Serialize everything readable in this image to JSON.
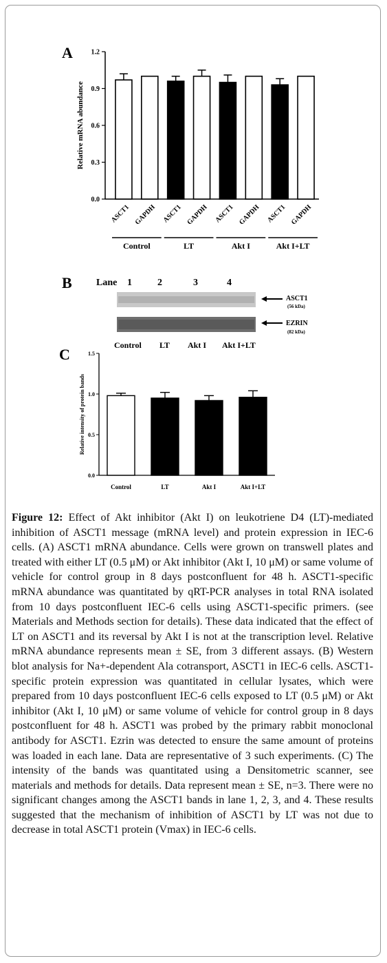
{
  "panel_letters": {
    "a": "A",
    "b": "B",
    "c": "C"
  },
  "chart_data": [
    {
      "type": "bar",
      "panel": "A",
      "ylabel": "Relative mRNA abundance",
      "ylim": [
        0,
        1.2
      ],
      "yticks": [
        "0.0",
        "0.3",
        "0.6",
        "0.9",
        "1.2"
      ],
      "categories": [
        "ASCT1",
        "GAPDH",
        "ASCT1",
        "GAPDH",
        "ASCT1",
        "GAPDH",
        "ASCT1",
        "GAPDH"
      ],
      "groups": [
        "Control",
        "LT",
        "Akt I",
        "Akt I+LT"
      ],
      "values": [
        0.97,
        1.0,
        0.96,
        1.0,
        0.95,
        1.0,
        0.93,
        1.0
      ],
      "errors": [
        0.05,
        0.0,
        0.04,
        0.05,
        0.06,
        0.0,
        0.05,
        0.0
      ],
      "fills": [
        "#ffffff",
        "#ffffff",
        "#000000",
        "#ffffff",
        "#000000",
        "#ffffff",
        "#000000",
        "#ffffff"
      ]
    },
    {
      "type": "bar",
      "panel": "C",
      "ylabel": "Relative intensity of protein bands",
      "ylim": [
        0,
        1.5
      ],
      "yticks": [
        "0.0",
        "0.5",
        "1.0",
        "1.5"
      ],
      "categories": [
        "Control",
        "LT",
        "Akt I",
        "Akt I+LT"
      ],
      "values": [
        0.98,
        0.95,
        0.92,
        0.96
      ],
      "errors": [
        0.03,
        0.07,
        0.06,
        0.08
      ],
      "fills": [
        "#ffffff",
        "#000000",
        "#000000",
        "#000000"
      ]
    }
  ],
  "blot": {
    "lane_header": "Lane",
    "lanes": [
      "1",
      "2",
      "3",
      "4"
    ],
    "bands": [
      {
        "name": "ASCT1",
        "kda": "(56 kDa)"
      },
      {
        "name": "EZRIN",
        "kda": "(82 kDa)"
      }
    ],
    "conditions": [
      "Control",
      "LT",
      "Akt I",
      "Akt I+LT"
    ]
  },
  "caption": {
    "label": "Figure 12:",
    "text": "Effect of Akt inhibitor (Akt I) on leukotriene D4 (LT)-mediated inhibition of ASCT1 message (mRNA level) and protein expression in IEC-6 cells. (A) ASCT1 mRNA abundance. Cells were grown on transwell plates and treated with either LT (0.5 μM) or Akt inhibitor (Akt I, 10 μM) or same volume of vehicle for control group in 8 days postconfluent for 48 h. ASCT1-specific mRNA abundance was quantitated by qRT-PCR analyses in total RNA isolated from 10 days postconfluent IEC-6 cells using ASCT1-specific primers. (see Materials and Methods section for details). These data indicated that the effect of LT on ASCT1 and its reversal by Akt I is not at the transcription level. Relative mRNA abundance represents mean ± SE, from 3 different assays. (B) Western blot analysis for Na+-dependent Ala cotransport, ASCT1 in IEC-6 cells. ASCT1-specific protein expression was quantitated in cellular lysates, which were prepared from 10 days postconfluent IEC-6 cells exposed to LT (0.5 μM) or Akt inhibitor (Akt I, 10 μM) or same volume of vehicle for control group in 8 days postconfluent for 48 h. ASCT1 was probed by the primary rabbit monoclonal antibody for ASCT1. Ezrin was detected to ensure the same amount of proteins was loaded in each lane. Data are representative of 3 such experiments. (C) The intensity of the bands was quantitated using a Densitometric scanner, see materials and methods for details. Data represent mean ± SE, n=3. There were no significant changes among the ASCT1 bands in lane 1, 2, 3, and 4. These results suggested that the mechanism of inhibition of ASCT1 by LT was not due to decrease in total ASCT1 protein (Vmax) in IEC-6 cells."
  },
  "colors": {
    "border": "#9a9a9a",
    "blot_band": "#5a5a5a",
    "blot_bg": "#c8c8c8"
  }
}
